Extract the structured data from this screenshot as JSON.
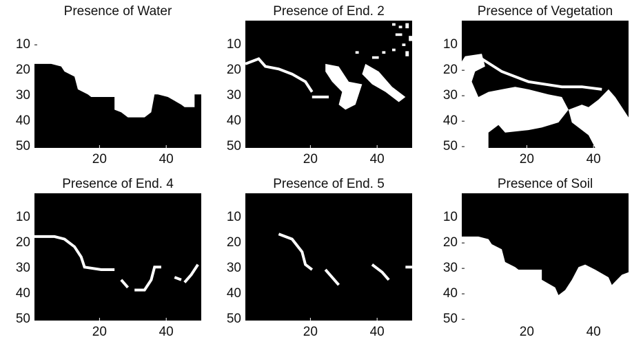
{
  "chart_data": [
    {
      "type": "image",
      "title": "Presence of Water",
      "xlim": [
        0.5,
        50.5
      ],
      "ylim": [
        0.5,
        50.5
      ],
      "y_reversed": true,
      "xticks": [
        20,
        40
      ],
      "yticks": [
        10,
        20,
        30,
        40,
        50
      ]
    },
    {
      "type": "image",
      "title": "Presence of End. 2",
      "xlim": [
        0.5,
        50.5
      ],
      "ylim": [
        0.5,
        50.5
      ],
      "y_reversed": true,
      "xticks": [
        20,
        40
      ],
      "yticks": [
        10,
        20,
        30,
        40,
        50
      ]
    },
    {
      "type": "image",
      "title": "Presence of Vegetation",
      "xlim": [
        0.5,
        50.5
      ],
      "ylim": [
        0.5,
        50.5
      ],
      "y_reversed": true,
      "xticks": [
        20,
        40
      ],
      "yticks": [
        10,
        20,
        30,
        40,
        50
      ]
    },
    {
      "type": "image",
      "title": "Presence of End. 4",
      "xlim": [
        0.5,
        50.5
      ],
      "ylim": [
        0.5,
        50.5
      ],
      "y_reversed": true,
      "xticks": [
        20,
        40
      ],
      "yticks": [
        10,
        20,
        30,
        40,
        50
      ]
    },
    {
      "type": "image",
      "title": "Presence of End. 5",
      "xlim": [
        0.5,
        50.5
      ],
      "ylim": [
        0.5,
        50.5
      ],
      "y_reversed": true,
      "xticks": [
        20,
        40
      ],
      "yticks": [
        10,
        20,
        30,
        40,
        50
      ]
    },
    {
      "type": "image",
      "title": "Presence of Soil",
      "xlim": [
        0.5,
        50.5
      ],
      "ylim": [
        0.5,
        50.5
      ],
      "y_reversed": true,
      "xticks": [
        20,
        40
      ],
      "yticks": [
        10,
        20,
        30,
        40,
        50
      ]
    }
  ]
}
